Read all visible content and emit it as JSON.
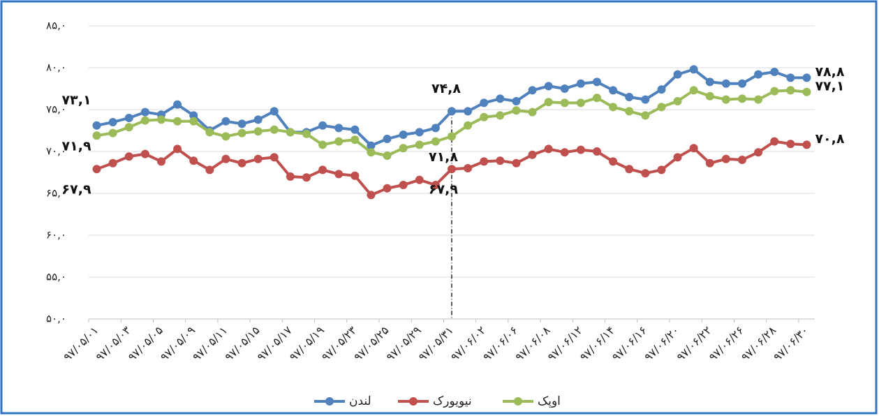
{
  "chart_data": {
    "type": "line",
    "categories": [
      "۹۷/۰۵/۰۱",
      null,
      "۹۷/۰۵/۰۳",
      null,
      "۹۷/۰۵/۰۵",
      null,
      "۹۷/۰۵/۰۹",
      null,
      "۹۷/۰۵/۱۱",
      null,
      "۹۷/۰۵/۱۵",
      null,
      "۹۷/۰۵/۱۷",
      null,
      "۹۷/۰۵/۱۹",
      null,
      "۹۷/۰۵/۲۳",
      null,
      "۹۷/۰۵/۲۵",
      null,
      "۹۷/۰۵/۲۹",
      null,
      "۹۷/۰۵/۳۱",
      null,
      "۹۷/۰۶/۰۲",
      null,
      "۹۷/۰۶/۰۶",
      null,
      "۹۷/۰۶/۰۸",
      null,
      "۹۷/۰۶/۱۲",
      null,
      "۹۷/۰۶/۱۴",
      null,
      "۹۷/۰۶/۱۶",
      null,
      "۹۷/۰۶/۲۰",
      null,
      "۹۷/۰۶/۲۲",
      null,
      "۹۷/۰۶/۲۶",
      null,
      "۹۷/۰۶/۲۸",
      null,
      "۹۷/۰۶/۳۰"
    ],
    "series": [
      {
        "name": "لندن",
        "color": "#4f81bd",
        "values": [
          73.1,
          73.5,
          74.0,
          74.7,
          74.4,
          75.6,
          74.3,
          72.5,
          73.6,
          73.3,
          73.8,
          74.8,
          72.3,
          72.3,
          73.1,
          72.8,
          72.6,
          70.7,
          71.5,
          72.0,
          72.3,
          72.8,
          74.8,
          74.8,
          75.8,
          76.3,
          76.0,
          77.3,
          77.8,
          77.5,
          78.1,
          78.3,
          77.3,
          76.5,
          76.2,
          77.4,
          79.2,
          79.8,
          78.3,
          78.1,
          78.1,
          79.2,
          79.5,
          78.8,
          78.8
        ],
        "value_labels": [
          "۷۳,۱",
          null,
          null,
          null,
          null,
          null,
          null,
          null,
          null,
          null,
          null,
          null,
          null,
          null,
          null,
          null,
          null,
          null,
          null,
          null,
          null,
          null,
          "۷۴,۸",
          null,
          null,
          null,
          null,
          null,
          null,
          null,
          null,
          null,
          null,
          null,
          null,
          null,
          null,
          null,
          null,
          null,
          null,
          null,
          null,
          null,
          "۷۸,۸"
        ]
      },
      {
        "name": "نیویورک",
        "color": "#c0504d",
        "values": [
          67.9,
          68.6,
          69.4,
          69.7,
          68.8,
          70.3,
          68.9,
          67.8,
          69.1,
          68.6,
          69.1,
          69.3,
          67.0,
          66.9,
          67.8,
          67.3,
          67.1,
          64.8,
          65.6,
          66.0,
          66.6,
          66.0,
          67.9,
          68.0,
          68.8,
          68.9,
          68.6,
          69.6,
          70.3,
          69.9,
          70.2,
          70.0,
          68.8,
          67.9,
          67.4,
          67.8,
          69.3,
          70.4,
          68.6,
          69.1,
          69.0,
          69.9,
          71.2,
          70.9,
          70.8
        ],
        "value_labels": [
          "۶۷,۹",
          null,
          null,
          null,
          null,
          null,
          null,
          null,
          null,
          null,
          null,
          null,
          null,
          null,
          null,
          null,
          null,
          null,
          null,
          null,
          null,
          null,
          "۶۷,۹",
          null,
          null,
          null,
          null,
          null,
          null,
          null,
          null,
          null,
          null,
          null,
          null,
          null,
          null,
          null,
          null,
          null,
          null,
          null,
          null,
          null,
          "۷۰,۸"
        ]
      },
      {
        "name": "اوپک",
        "color": "#9bbb59",
        "values": [
          71.9,
          72.2,
          72.9,
          73.7,
          73.8,
          73.6,
          73.6,
          72.3,
          71.8,
          72.2,
          72.4,
          72.6,
          72.3,
          72.1,
          70.8,
          71.2,
          71.4,
          69.9,
          69.5,
          70.4,
          70.8,
          71.2,
          71.8,
          73.1,
          74.1,
          74.3,
          74.9,
          74.7,
          75.9,
          75.8,
          75.8,
          76.4,
          75.3,
          74.8,
          74.3,
          75.3,
          76.0,
          77.3,
          76.6,
          76.2,
          76.3,
          76.2,
          77.2,
          77.3,
          77.1
        ],
        "value_labels": [
          "۷۱,۹",
          null,
          null,
          null,
          null,
          null,
          null,
          null,
          null,
          null,
          null,
          null,
          null,
          null,
          null,
          null,
          null,
          null,
          null,
          null,
          null,
          null,
          "۷۱,۸",
          null,
          null,
          null,
          null,
          null,
          null,
          null,
          null,
          null,
          null,
          null,
          null,
          null,
          null,
          null,
          null,
          null,
          null,
          null,
          null,
          null,
          "۷۷,۱"
        ]
      }
    ],
    "ylim": [
      50,
      85
    ],
    "yticks": [
      {
        "value": 50,
        "label": "۵۰,۰"
      },
      {
        "value": 55,
        "label": "۵۵,۰"
      },
      {
        "value": 60,
        "label": "۶۰,۰"
      },
      {
        "value": 65,
        "label": "۶۵,۰"
      },
      {
        "value": 70,
        "label": "۷۰,۰"
      },
      {
        "value": 75,
        "label": "۷۵,۰"
      },
      {
        "value": 80,
        "label": "۸۰,۰"
      },
      {
        "value": 85,
        "label": "۸۵,۰"
      }
    ],
    "grid": true,
    "legend": "bottom"
  }
}
